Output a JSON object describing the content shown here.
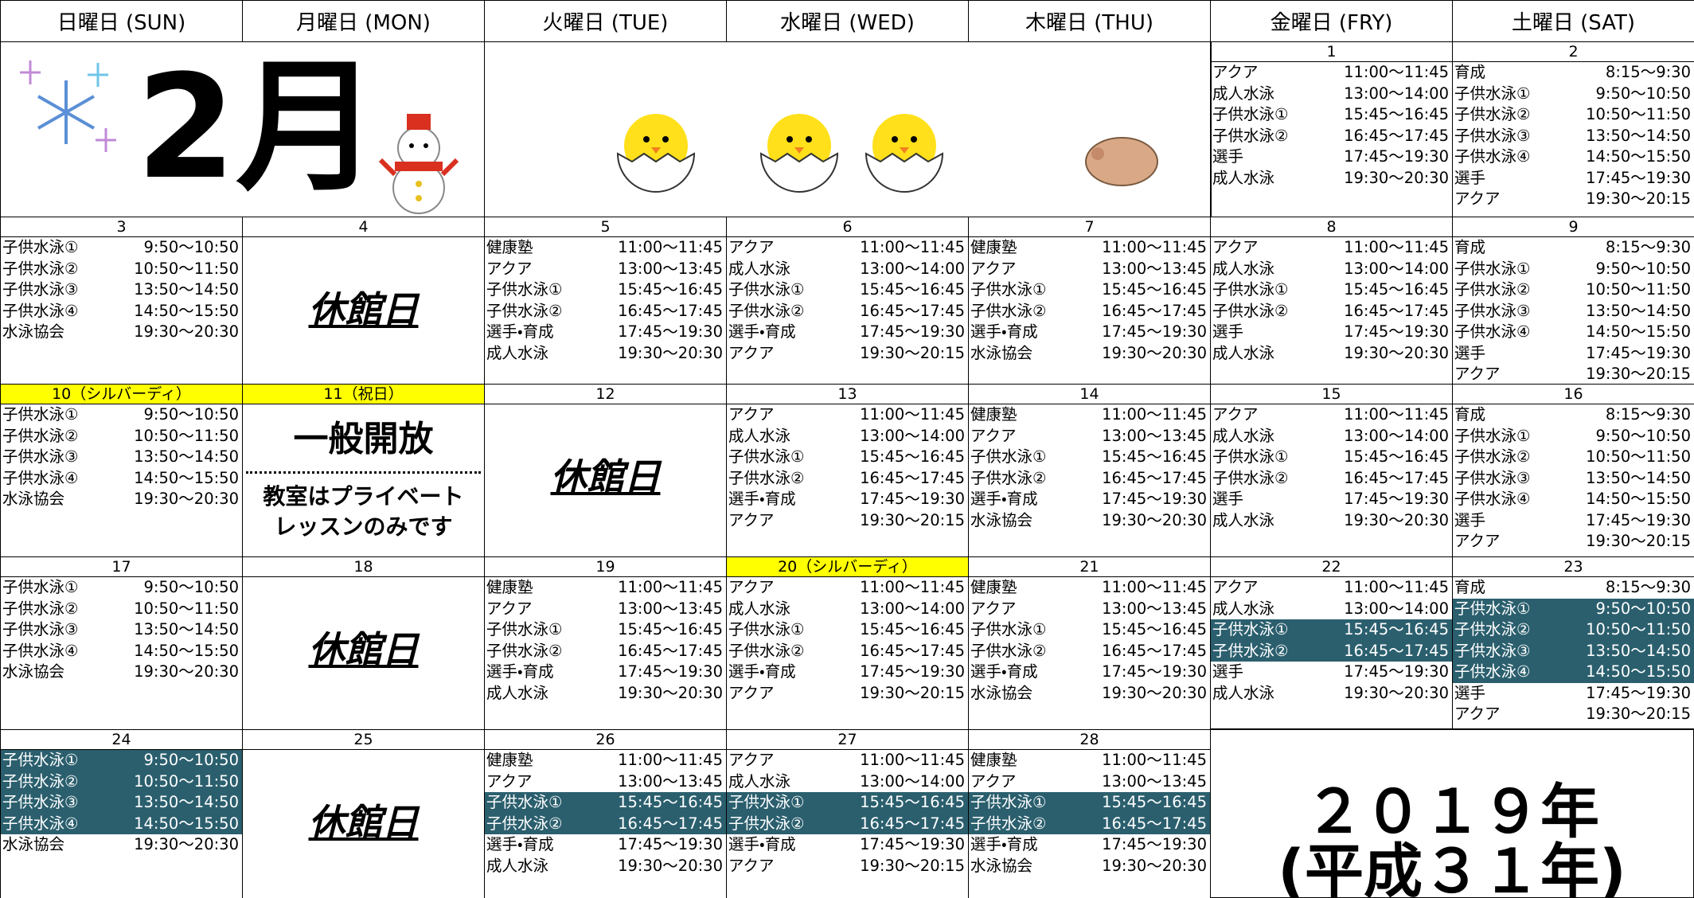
{
  "header": {
    "month": "2月",
    "year": "２０１９年",
    "era": "(平成３１年)"
  },
  "weekdays": [
    "日曜日 (SUN)",
    "月曜日 (MON)",
    "火曜日 (TUE)",
    "水曜日 (WED)",
    "木曜日 (THU)",
    "金曜日 (FRY)",
    "土曜日 (SAT)"
  ],
  "weeks": [
    {
      "days": [
        {
          "date": "1",
          "entries": [
            [
              "アクア",
              "11:00～11:45"
            ],
            [
              "成人水泳",
              "13:00～14:00"
            ],
            [
              "子供水泳①",
              "15:45～16:45"
            ],
            [
              "子供水泳②",
              "16:45～17:45"
            ],
            [
              "選手",
              "17:45～19:30"
            ],
            [
              "成人水泳",
              "19:30～20:30"
            ]
          ]
        },
        {
          "date": "2",
          "entries": [
            [
              "育成",
              "8:15～9:30"
            ],
            [
              "子供水泳①",
              "9:50～10:50"
            ],
            [
              "子供水泳②",
              "10:50～11:50"
            ],
            [
              "子供水泳③",
              "13:50～14:50"
            ],
            [
              "子供水泳④",
              "14:50～15:50"
            ],
            [
              "選手",
              "17:45～19:30"
            ],
            [
              "アクア",
              "19:30～20:15"
            ]
          ]
        }
      ]
    },
    {
      "days": [
        {
          "date": "3",
          "entries": [
            [
              "子供水泳①",
              "9:50～10:50"
            ],
            [
              "子供水泳②",
              "10:50～11:50"
            ],
            [
              "子供水泳③",
              "13:50～14:50"
            ],
            [
              "子供水泳④",
              "14:50～15:50"
            ],
            [
              "水泳協会",
              "19:30～20:30"
            ]
          ]
        },
        {
          "date": "4",
          "note": [
            "休館日"
          ]
        },
        {
          "date": "5",
          "entries": [
            [
              "健康塾",
              "11:00～11:45"
            ],
            [
              "アクア",
              "13:00～13:45"
            ],
            [
              "子供水泳①",
              "15:45～16:45"
            ],
            [
              "子供水泳②",
              "16:45～17:45"
            ],
            [
              "選手・育成",
              "17:45～19:30"
            ],
            [
              "成人水泳",
              "19:30～20:30"
            ]
          ]
        },
        {
          "date": "6",
          "entries": [
            [
              "アクア",
              "11:00～11:45"
            ],
            [
              "成人水泳",
              "13:00～14:00"
            ],
            [
              "子供水泳①",
              "15:45～16:45"
            ],
            [
              "子供水泳②",
              "16:45～17:45"
            ],
            [
              "選手・育成",
              "17:45～19:30"
            ],
            [
              "アクア",
              "19:30～20:15"
            ]
          ]
        },
        {
          "date": "7",
          "entries": [
            [
              "健康塾",
              "11:00～11:45"
            ],
            [
              "アクア",
              "13:00～13:45"
            ],
            [
              "子供水泳①",
              "15:45～16:45"
            ],
            [
              "子供水泳②",
              "16:45～17:45"
            ],
            [
              "選手・育成",
              "17:45～19:30"
            ],
            [
              "水泳協会",
              "19:30～20:30"
            ]
          ]
        },
        {
          "date": "8",
          "entries": [
            [
              "アクア",
              "11:00～11:45"
            ],
            [
              "成人水泳",
              "13:00～14:00"
            ],
            [
              "子供水泳①",
              "15:45～16:45"
            ],
            [
              "子供水泳②",
              "16:45～17:45"
            ],
            [
              "選手",
              "17:45～19:30"
            ],
            [
              "成人水泳",
              "19:30～20:30"
            ]
          ]
        },
        {
          "date": "9",
          "entries": [
            [
              "育成",
              "8:15～9:30"
            ],
            [
              "子供水泳①",
              "9:50～10:50"
            ],
            [
              "子供水泳②",
              "10:50～11:50"
            ],
            [
              "子供水泳③",
              "13:50～14:50"
            ],
            [
              "子供水泳④",
              "14:50～15:50"
            ],
            [
              "選手",
              "17:45～19:30"
            ],
            [
              "アクア",
              "19:30～20:15"
            ]
          ]
        }
      ]
    },
    {
      "days": [
        {
          "date": "10（シルバーディ）",
          "date_highlight": true,
          "entries": [
            [
              "子供水泳①",
              "9:50～10:50"
            ],
            [
              "子供水泳②",
              "10:50～11:50"
            ],
            [
              "子供水泳③",
              "13:50～14:50"
            ],
            [
              "子供水泳④",
              "14:50～15:50"
            ],
            [
              "水泳協会",
              "19:30～20:30"
            ]
          ]
        },
        {
          "date": "11（祝日）",
          "date_highlight": true,
          "open": "一般開放",
          "open_note": [
            "教室はプライベート",
            "レッスンのみです"
          ]
        },
        {
          "date": "12",
          "note": [
            "休館日"
          ]
        },
        {
          "date": "13",
          "entries": [
            [
              "アクア",
              "11:00～11:45"
            ],
            [
              "成人水泳",
              "13:00～14:00"
            ],
            [
              "子供水泳①",
              "15:45～16:45"
            ],
            [
              "子供水泳②",
              "16:45～17:45"
            ],
            [
              "選手・育成",
              "17:45～19:30"
            ],
            [
              "アクア",
              "19:30～20:15"
            ]
          ]
        },
        {
          "date": "14",
          "entries": [
            [
              "健康塾",
              "11:00～11:45"
            ],
            [
              "アクア",
              "13:00～13:45"
            ],
            [
              "子供水泳①",
              "15:45～16:45"
            ],
            [
              "子供水泳②",
              "16:45～17:45"
            ],
            [
              "選手・育成",
              "17:45～19:30"
            ],
            [
              "水泳協会",
              "19:30～20:30"
            ]
          ]
        },
        {
          "date": "15",
          "entries": [
            [
              "アクア",
              "11:00～11:45"
            ],
            [
              "成人水泳",
              "13:00～14:00"
            ],
            [
              "子供水泳①",
              "15:45～16:45"
            ],
            [
              "子供水泳②",
              "16:45～17:45"
            ],
            [
              "選手",
              "17:45～19:30"
            ],
            [
              "成人水泳",
              "19:30～20:30"
            ]
          ]
        },
        {
          "date": "16",
          "entries": [
            [
              "育成",
              "8:15～9:30"
            ],
            [
              "子供水泳①",
              "9:50～10:50"
            ],
            [
              "子供水泳②",
              "10:50～11:50"
            ],
            [
              "子供水泳③",
              "13:50～14:50"
            ],
            [
              "子供水泳④",
              "14:50～15:50"
            ],
            [
              "選手",
              "17:45～19:30"
            ],
            [
              "アクア",
              "19:30～20:15"
            ]
          ]
        }
      ]
    },
    {
      "days": [
        {
          "date": "17",
          "entries": [
            [
              "子供水泳①",
              "9:50～10:50"
            ],
            [
              "子供水泳②",
              "10:50～11:50"
            ],
            [
              "子供水泳③",
              "13:50～14:50"
            ],
            [
              "子供水泳④",
              "14:50～15:50"
            ],
            [
              "水泳協会",
              "19:30～20:30"
            ]
          ]
        },
        {
          "date": "18",
          "note": [
            "休館日"
          ]
        },
        {
          "date": "19",
          "entries": [
            [
              "健康塾",
              "11:00～11:45"
            ],
            [
              "アクア",
              "13:00～13:45"
            ],
            [
              "子供水泳①",
              "15:45～16:45"
            ],
            [
              "子供水泳②",
              "16:45～17:45"
            ],
            [
              "選手・育成",
              "17:45～19:30"
            ],
            [
              "成人水泳",
              "19:30～20:30"
            ]
          ]
        },
        {
          "date": "20（シルバーディ）",
          "date_highlight": true,
          "entries": [
            [
              "アクア",
              "11:00～11:45"
            ],
            [
              "成人水泳",
              "13:00～14:00"
            ],
            [
              "子供水泳①",
              "15:45～16:45"
            ],
            [
              "子供水泳②",
              "16:45～17:45"
            ],
            [
              "選手・育成",
              "17:45～19:30"
            ],
            [
              "アクア",
              "19:30～20:15"
            ]
          ]
        },
        {
          "date": "21",
          "entries": [
            [
              "健康塾",
              "11:00～11:45"
            ],
            [
              "アクア",
              "13:00～13:45"
            ],
            [
              "子供水泳①",
              "15:45～16:45"
            ],
            [
              "子供水泳②",
              "16:45～17:45"
            ],
            [
              "選手・育成",
              "17:45～19:30"
            ],
            [
              "水泳協会",
              "19:30～20:30"
            ]
          ]
        },
        {
          "date": "22",
          "highlight_rows": [
            2,
            3
          ],
          "entries": [
            [
              "アクア",
              "11:00～11:45"
            ],
            [
              "成人水泳",
              "13:00～14:00"
            ],
            [
              "子供水泳①",
              "15:45～16:45"
            ],
            [
              "子供水泳②",
              "16:45～17:45"
            ],
            [
              "選手",
              "17:45～19:30"
            ],
            [
              "成人水泳",
              "19:30～20:30"
            ]
          ]
        },
        {
          "date": "23",
          "highlight_rows": [
            1,
            2,
            3,
            4
          ],
          "entries": [
            [
              "育成",
              "8:15～9:30"
            ],
            [
              "子供水泳①",
              "9:50～10:50"
            ],
            [
              "子供水泳②",
              "10:50～11:50"
            ],
            [
              "子供水泳③",
              "13:50～14:50"
            ],
            [
              "子供水泳④",
              "14:50～15:50"
            ],
            [
              "選手",
              "17:45～19:30"
            ],
            [
              "アクア",
              "19:30～20:15"
            ]
          ]
        }
      ]
    },
    {
      "days": [
        {
          "date": "24",
          "highlight_rows": [
            0,
            1,
            2,
            3
          ],
          "entries": [
            [
              "子供水泳①",
              "9:50～10:50"
            ],
            [
              "子供水泳②",
              "10:50～11:50"
            ],
            [
              "子供水泳③",
              "13:50～14:50"
            ],
            [
              "子供水泳④",
              "14:50～15:50"
            ],
            [
              "水泳協会",
              "19:30～20:30"
            ]
          ]
        },
        {
          "date": "25",
          "note": [
            "休館日"
          ]
        },
        {
          "date": "26",
          "highlight_rows": [
            2,
            3
          ],
          "entries": [
            [
              "健康塾",
              "11:00～11:45"
            ],
            [
              "アクア",
              "13:00～13:45"
            ],
            [
              "子供水泳①",
              "15:45～16:45"
            ],
            [
              "子供水泳②",
              "16:45～17:45"
            ],
            [
              "選手・育成",
              "17:45～19:30"
            ],
            [
              "成人水泳",
              "19:30～20:30"
            ]
          ]
        },
        {
          "date": "27",
          "highlight_rows": [
            2,
            3
          ],
          "entries": [
            [
              "アクア",
              "11:00～11:45"
            ],
            [
              "成人水泳",
              "13:00～14:00"
            ],
            [
              "子供水泳①",
              "15:45～16:45"
            ],
            [
              "子供水泳②",
              "16:45～17:45"
            ],
            [
              "選手・育成",
              "17:45～19:30"
            ],
            [
              "アクア",
              "19:30～20:15"
            ]
          ]
        },
        {
          "date": "28",
          "highlight_rows": [
            2,
            3
          ],
          "entries": [
            [
              "健康塾",
              "11:00～11:45"
            ],
            [
              "アクア",
              "13:00～13:45"
            ],
            [
              "子供水泳①",
              "15:45～16:45"
            ],
            [
              "子供水泳②",
              "16:45～17:45"
            ],
            [
              "選手・育成",
              "17:45～19:30"
            ],
            [
              "水泳協会",
              "19:30～20:30"
            ]
          ]
        }
      ]
    }
  ]
}
